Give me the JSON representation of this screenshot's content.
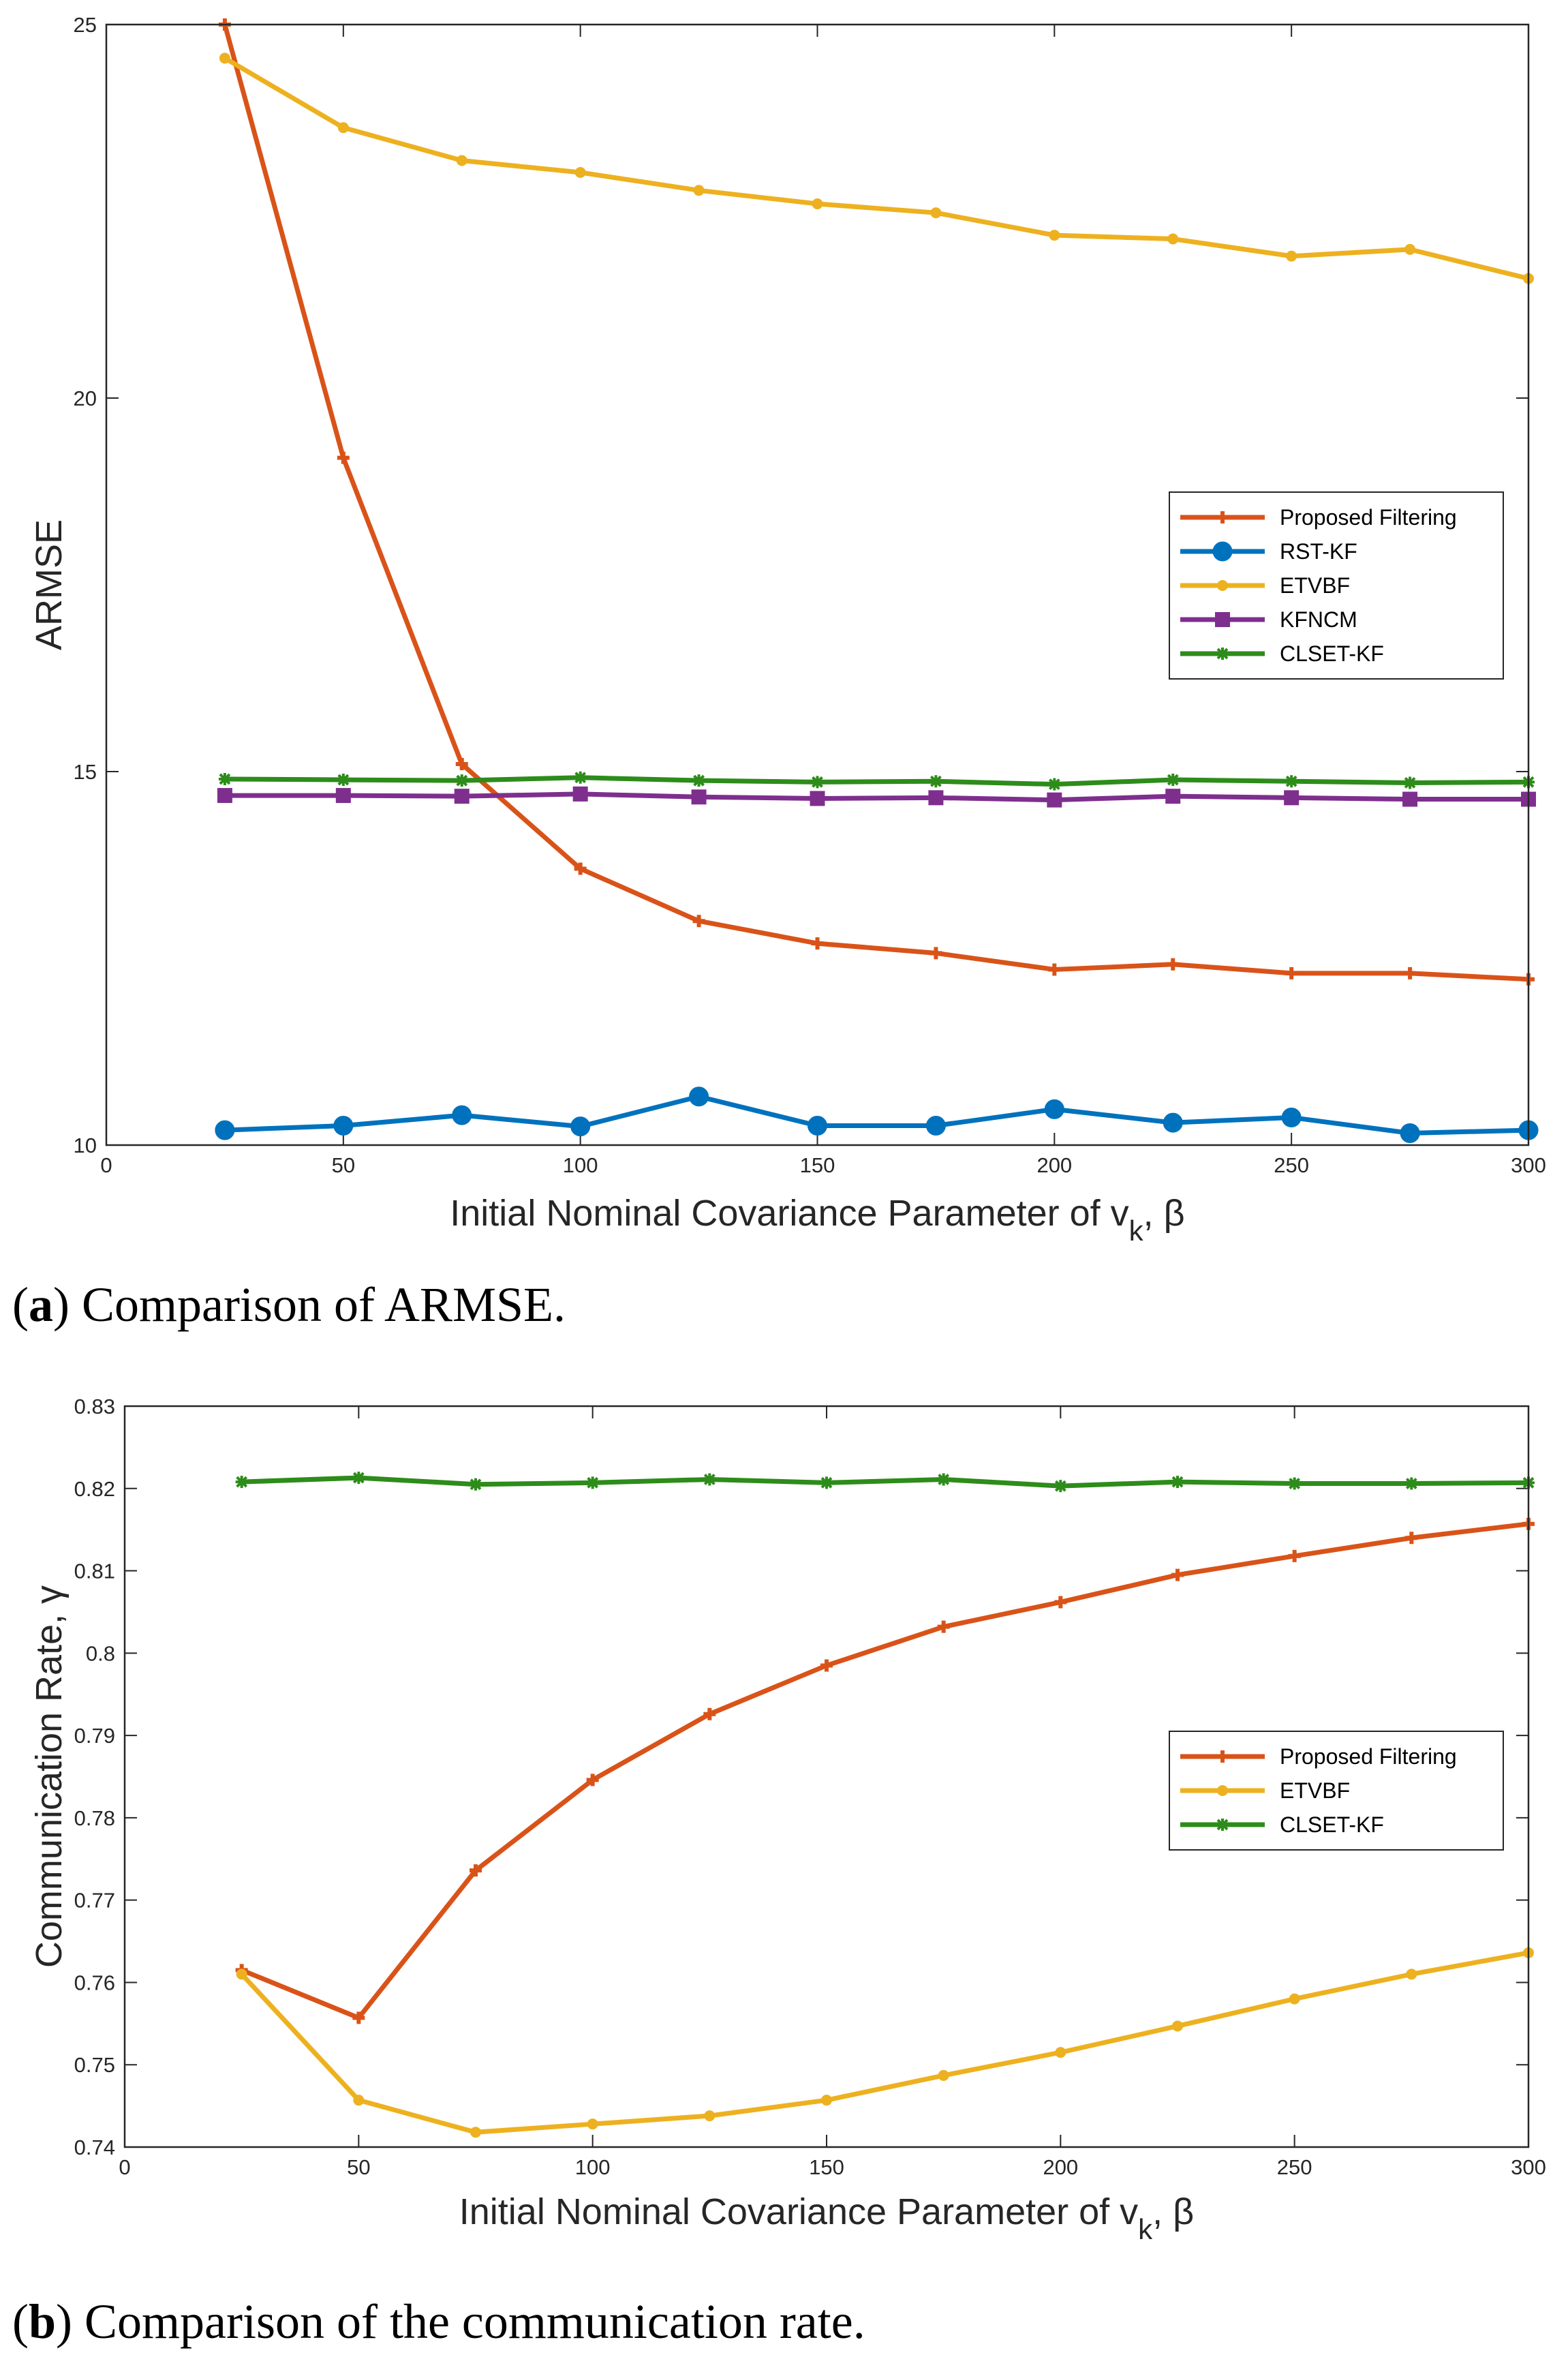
{
  "chart_data": [
    {
      "type": "line",
      "title": "",
      "xlabel": "Initial Nominal Covariance Parameter of v",
      "xlabel_sub": "k",
      "xlabel_tail": ", β",
      "ylabel": "ARMSE",
      "xlim": [
        0,
        300
      ],
      "ylim": [
        10,
        25
      ],
      "xticks": [
        "0",
        "50",
        "100",
        "150",
        "200",
        "250",
        "300"
      ],
      "yticks": [
        "10",
        "15",
        "20",
        "25"
      ],
      "x": [
        25,
        50,
        75,
        100,
        125,
        150,
        175,
        200,
        225,
        250,
        275,
        300
      ],
      "series": [
        {
          "name": "Proposed Filtering",
          "color": "#d95319",
          "marker": "plus",
          "values": [
            25.0,
            19.2,
            15.1,
            13.7,
            13.0,
            12.7,
            12.57,
            12.35,
            12.42,
            12.3,
            12.3,
            12.22
          ]
        },
        {
          "name": "RST-KF",
          "color": "#0072bd",
          "marker": "circle",
          "values": [
            10.2,
            10.26,
            10.4,
            10.25,
            10.65,
            10.26,
            10.26,
            10.48,
            10.3,
            10.37,
            10.16,
            10.2
          ]
        },
        {
          "name": "ETVBF",
          "color": "#edb120",
          "marker": "dot",
          "values": [
            24.55,
            23.62,
            23.18,
            23.02,
            22.78,
            22.6,
            22.48,
            22.18,
            22.13,
            21.9,
            21.99,
            21.6
          ]
        },
        {
          "name": "KFNCM",
          "color": "#7e2f8e",
          "marker": "square",
          "values": [
            14.68,
            14.68,
            14.67,
            14.7,
            14.66,
            14.64,
            14.65,
            14.62,
            14.67,
            14.65,
            14.63,
            14.63
          ]
        },
        {
          "name": "CLSET-KF",
          "color": "#2d8c1a",
          "marker": "star",
          "values": [
            14.9,
            14.89,
            14.88,
            14.92,
            14.88,
            14.86,
            14.87,
            14.83,
            14.89,
            14.87,
            14.85,
            14.86
          ]
        }
      ],
      "caption_bold": "a",
      "caption": "Comparison of ARMSE."
    },
    {
      "type": "line",
      "title": "",
      "xlabel": "Initial Nominal Covariance Parameter of v",
      "xlabel_sub": "k",
      "xlabel_tail": ", β",
      "ylabel": "Communication Rate, γ",
      "xlim": [
        0,
        300
      ],
      "ylim": [
        0.74,
        0.83
      ],
      "xticks": [
        "0",
        "50",
        "100",
        "150",
        "200",
        "250",
        "300"
      ],
      "yticks": [
        "0.74",
        "0.75",
        "0.76",
        "0.77",
        "0.78",
        "0.79",
        "0.8",
        "0.81",
        "0.82",
        "0.83"
      ],
      "x": [
        25,
        50,
        75,
        100,
        125,
        150,
        175,
        200,
        225,
        250,
        275,
        300
      ],
      "series": [
        {
          "name": "Proposed Filtering",
          "color": "#d95319",
          "marker": "plus",
          "values": [
            0.7615,
            0.7557,
            0.7736,
            0.7846,
            0.7926,
            0.7985,
            0.8032,
            0.8062,
            0.8095,
            0.8118,
            0.814,
            0.8157
          ]
        },
        {
          "name": "ETVBF",
          "color": "#edb120",
          "marker": "dot",
          "values": [
            0.761,
            0.7457,
            0.7418,
            0.7428,
            0.7438,
            0.7457,
            0.7487,
            0.7515,
            0.7547,
            0.758,
            0.761,
            0.7636
          ]
        },
        {
          "name": "CLSET-KF",
          "color": "#2d8c1a",
          "marker": "star",
          "values": [
            0.8208,
            0.8213,
            0.8205,
            0.8207,
            0.8211,
            0.8207,
            0.8211,
            0.8203,
            0.8208,
            0.8206,
            0.8206,
            0.8207
          ]
        }
      ],
      "caption_bold": "b",
      "caption": "Comparison of the communication rate."
    }
  ]
}
